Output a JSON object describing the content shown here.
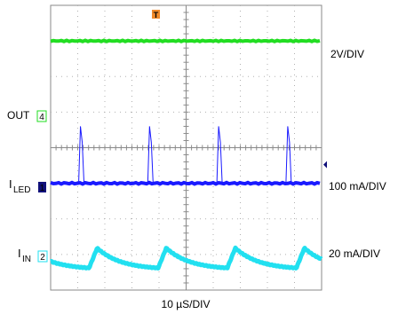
{
  "chart_data": {
    "type": "line",
    "title": "",
    "xlabel": "10 µS/DIV",
    "grid": true,
    "x_divisions": 10,
    "y_divisions": 8,
    "trigger_marker": "T",
    "series": [
      {
        "name": "OUT",
        "channel": "4",
        "scale": "2V/DIV",
        "color": "#22dd22",
        "shape": "flat",
        "level_div": 1.0
      },
      {
        "name": "ILED",
        "channel": "1",
        "scale": "100 mA/DIV",
        "color": "#1a1aff",
        "shape": "flat-with-spikes",
        "level_div": 5.0,
        "spike_times_div": [
          1.1,
          3.65,
          6.2,
          8.75
        ],
        "spike_height_div": 1.6
      },
      {
        "name": "IIN",
        "channel": "2",
        "scale": "20 mA/DIV",
        "color": "#22e0f0",
        "shape": "sawtooth",
        "level_div": 7.1,
        "period_div": 2.55,
        "amplitude_div": 0.28
      }
    ],
    "labels": {
      "out": {
        "text": "OUT",
        "channel": "4"
      },
      "iled": {
        "main": "I",
        "sub": "LED",
        "channel": "1"
      },
      "iin": {
        "main": "I",
        "sub": "IN",
        "channel": "2"
      }
    }
  }
}
